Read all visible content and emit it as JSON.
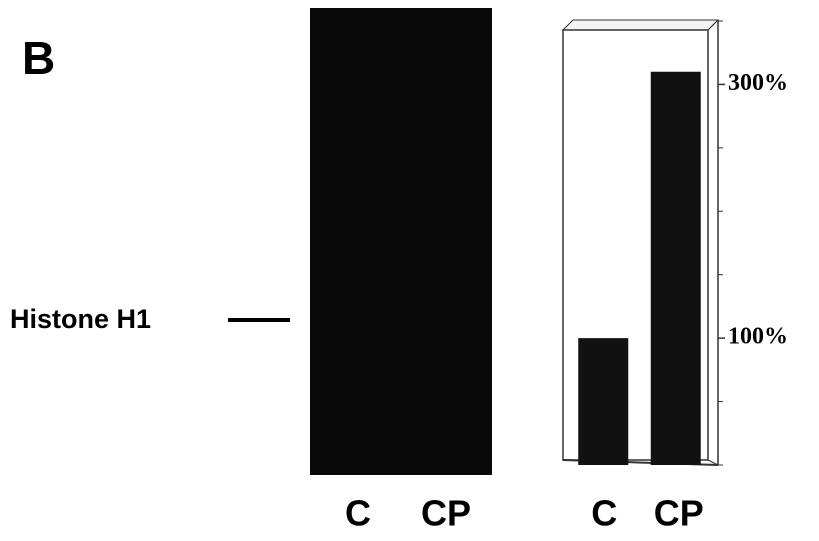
{
  "panel_label": "B",
  "blot": {
    "band_label": "Histone H1",
    "lanes": [
      "C",
      "CP"
    ]
  },
  "chart_data": {
    "type": "bar",
    "categories": [
      "C",
      "CP"
    ],
    "values": [
      100,
      310
    ],
    "color": "#111111",
    "ylim": [
      0,
      350
    ],
    "yticks": [
      {
        "value": 100,
        "label": "100%"
      },
      {
        "value": 300,
        "label": "300%"
      }
    ],
    "minor_yticks": [
      0,
      50,
      150,
      200,
      250,
      350
    ],
    "y_axis_side": "right"
  }
}
